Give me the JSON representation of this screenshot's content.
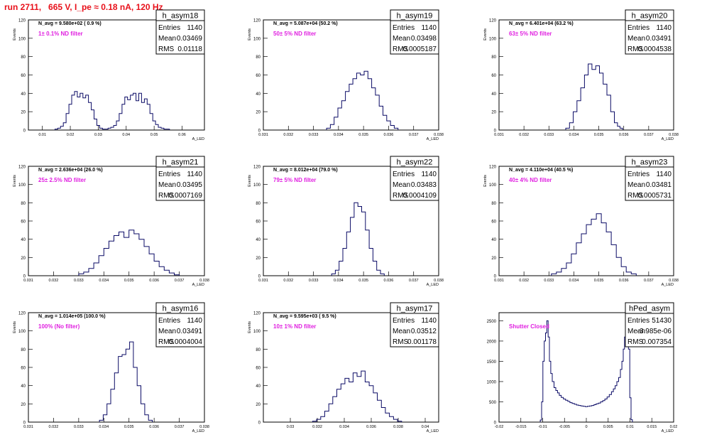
{
  "run_title": "run 2711,   665 V, I_pe ≈ 0.18 nA, 120 Hz",
  "chart_data": [
    {
      "type": "histogram",
      "name": "h_asym18",
      "stats": {
        "entries": "1140",
        "mean": "0.03469",
        "rms": "0.01118"
      },
      "n_avg": "N_avg = 9.580e+02 ( 0.9 %)",
      "filter": "1± 0.1% ND filter",
      "xlim": [
        0.005,
        0.068
      ],
      "ylim": [
        0,
        120
      ],
      "xticks": [
        0.01,
        0.02,
        0.03,
        0.04,
        0.05,
        0.06
      ],
      "xtick_labels": [
        "0.01",
        "0.02",
        "0.03",
        "0.04",
        "0.05",
        "0.06"
      ],
      "yticks": [
        0,
        20,
        40,
        60,
        80,
        100,
        120
      ],
      "xlabel": "A_LED",
      "ylabel": "Events",
      "bins": {
        "x": [
          0.015,
          0.016,
          0.017,
          0.018,
          0.019,
          0.02,
          0.021,
          0.022,
          0.023,
          0.024,
          0.025,
          0.026,
          0.027,
          0.028,
          0.029,
          0.03,
          0.031,
          0.032,
          0.033,
          0.034,
          0.035,
          0.036,
          0.037,
          0.038,
          0.039,
          0.04,
          0.041,
          0.042,
          0.043,
          0.044,
          0.045,
          0.046,
          0.047,
          0.048,
          0.049,
          0.05,
          0.051,
          0.052,
          0.053,
          0.054,
          0.055
        ],
        "y": [
          1,
          2,
          4,
          8,
          18,
          28,
          38,
          42,
          36,
          40,
          35,
          38,
          30,
          22,
          12,
          5,
          2,
          1,
          1,
          2,
          3,
          5,
          10,
          18,
          28,
          36,
          33,
          38,
          40,
          32,
          40,
          30,
          34,
          28,
          18,
          10,
          6,
          3,
          2,
          1,
          1
        ]
      }
    },
    {
      "type": "histogram",
      "name": "h_asym19",
      "stats": {
        "entries": "1140",
        "mean": "0.03498",
        "rms": "0.0005187"
      },
      "n_avg": "N_avg = 5.087e+04 (50.2 %)",
      "filter": "50± 5% ND filter",
      "xlim": [
        0.031,
        0.038
      ],
      "ylim": [
        0,
        120
      ],
      "xticks": [
        0.031,
        0.032,
        0.033,
        0.034,
        0.035,
        0.036,
        0.037,
        0.038
      ],
      "xtick_labels": [
        "0.031",
        "0.032",
        "0.033",
        "0.034",
        "0.035",
        "0.036",
        "0.037",
        "0.038"
      ],
      "yticks": [
        0,
        20,
        40,
        60,
        80,
        100,
        120
      ],
      "xlabel": "A_LED",
      "ylabel": "Events",
      "bins": {
        "x": [
          0.0336,
          0.03375,
          0.0339,
          0.03405,
          0.0342,
          0.03435,
          0.0345,
          0.03465,
          0.0348,
          0.03495,
          0.0351,
          0.03525,
          0.0354,
          0.03555,
          0.0357,
          0.03585,
          0.036,
          0.03615,
          0.0363
        ],
        "y": [
          2,
          6,
          14,
          24,
          32,
          42,
          50,
          56,
          62,
          60,
          64,
          56,
          46,
          38,
          26,
          16,
          10,
          5,
          2
        ]
      }
    },
    {
      "type": "histogram",
      "name": "h_asym20",
      "stats": {
        "entries": "1140",
        "mean": "0.03491",
        "rms": "0.0004538"
      },
      "n_avg": "N_avg = 6.401e+04 (63.2 %)",
      "filter": "63± 5% ND filter",
      "xlim": [
        0.031,
        0.038
      ],
      "ylim": [
        0,
        120
      ],
      "xticks": [
        0.031,
        0.032,
        0.033,
        0.034,
        0.035,
        0.036,
        0.037,
        0.038
      ],
      "xtick_labels": [
        "0.031",
        "0.032",
        "0.033",
        "0.034",
        "0.035",
        "0.036",
        "0.037",
        "0.038"
      ],
      "yticks": [
        0,
        20,
        40,
        60,
        80,
        100,
        120
      ],
      "xlabel": "A_LED",
      "ylabel": "Events",
      "bins": {
        "x": [
          0.03375,
          0.0339,
          0.03405,
          0.0342,
          0.03435,
          0.0345,
          0.03465,
          0.0348,
          0.03495,
          0.0351,
          0.03525,
          0.0354,
          0.03555,
          0.0357,
          0.0358,
          0.0359
        ],
        "y": [
          2,
          8,
          20,
          32,
          46,
          60,
          72,
          66,
          70,
          62,
          50,
          38,
          20,
          8,
          4,
          2
        ]
      }
    },
    {
      "type": "histogram",
      "name": "h_asym21",
      "stats": {
        "entries": "1140",
        "mean": "0.03495",
        "rms": "0.0007169"
      },
      "n_avg": "N_avg = 2.636e+04 (26.0 %)",
      "filter": "25± 2.5% ND filter",
      "xlim": [
        0.031,
        0.038
      ],
      "ylim": [
        0,
        120
      ],
      "xticks": [
        0.031,
        0.032,
        0.033,
        0.034,
        0.035,
        0.036,
        0.037,
        0.038
      ],
      "xtick_labels": [
        "0.031",
        "0.032",
        "0.033",
        "0.034",
        "0.035",
        "0.036",
        "0.037",
        "0.038"
      ],
      "yticks": [
        0,
        20,
        40,
        60,
        80,
        100,
        120
      ],
      "xlabel": "A_LED",
      "ylabel": "Events",
      "bins": {
        "x": [
          0.0331,
          0.0333,
          0.0335,
          0.0337,
          0.0339,
          0.0341,
          0.0343,
          0.0345,
          0.0347,
          0.0349,
          0.0351,
          0.0353,
          0.0355,
          0.0357,
          0.0359,
          0.0361,
          0.0363,
          0.0365,
          0.0367,
          0.0369
        ],
        "y": [
          2,
          4,
          8,
          14,
          22,
          30,
          38,
          44,
          48,
          42,
          50,
          46,
          40,
          32,
          24,
          16,
          10,
          6,
          3,
          1
        ]
      }
    },
    {
      "type": "histogram",
      "name": "h_asym22",
      "stats": {
        "entries": "1140",
        "mean": "0.03483",
        "rms": "0.0004109"
      },
      "n_avg": "N_avg = 8.012e+04 (79.0 %)",
      "filter": "79± 5% ND filter",
      "xlim": [
        0.031,
        0.038
      ],
      "ylim": [
        0,
        120
      ],
      "xticks": [
        0.031,
        0.032,
        0.033,
        0.034,
        0.035,
        0.036,
        0.037,
        0.038
      ],
      "xtick_labels": [
        "0.031",
        "0.032",
        "0.033",
        "0.034",
        "0.035",
        "0.036",
        "0.037",
        "0.038"
      ],
      "yticks": [
        0,
        20,
        40,
        60,
        80,
        100,
        120
      ],
      "xlabel": "A_LED",
      "ylabel": "Events",
      "bins": {
        "x": [
          0.0338,
          0.03395,
          0.0341,
          0.03425,
          0.0344,
          0.03455,
          0.0347,
          0.03485,
          0.035,
          0.03515,
          0.0353,
          0.03545,
          0.0356,
          0.03575
        ],
        "y": [
          2,
          6,
          16,
          30,
          48,
          64,
          80,
          76,
          70,
          50,
          30,
          16,
          6,
          2
        ]
      }
    },
    {
      "type": "histogram",
      "name": "h_asym23",
      "stats": {
        "entries": "1140",
        "mean": "0.03481",
        "rms": "0.0005731"
      },
      "n_avg": "N_avg = 4.110e+04 (40.5 %)",
      "filter": "40± 4% ND filter",
      "xlim": [
        0.031,
        0.038
      ],
      "ylim": [
        0,
        120
      ],
      "xticks": [
        0.031,
        0.032,
        0.033,
        0.034,
        0.035,
        0.036,
        0.037,
        0.038
      ],
      "xtick_labels": [
        "0.031",
        "0.032",
        "0.033",
        "0.034",
        "0.035",
        "0.036",
        "0.037",
        "0.038"
      ],
      "yticks": [
        0,
        20,
        40,
        60,
        80,
        100,
        120
      ],
      "xlabel": "A_LED",
      "ylabel": "Events",
      "bins": {
        "x": [
          0.0332,
          0.0334,
          0.0336,
          0.0338,
          0.034,
          0.0342,
          0.0344,
          0.0346,
          0.0348,
          0.035,
          0.0352,
          0.0354,
          0.0356,
          0.0358,
          0.036,
          0.0362,
          0.0364
        ],
        "y": [
          2,
          4,
          8,
          14,
          24,
          36,
          46,
          56,
          62,
          68,
          58,
          48,
          34,
          20,
          10,
          4,
          2
        ]
      }
    },
    {
      "type": "histogram",
      "name": "h_asym16",
      "stats": {
        "entries": "1140",
        "mean": "0.03491",
        "rms": "0.0004004"
      },
      "n_avg": "N_avg = 1.014e+05 (100.0 %)",
      "filter": "100% (No filter)",
      "xlim": [
        0.031,
        0.038
      ],
      "ylim": [
        0,
        120
      ],
      "xticks": [
        0.031,
        0.032,
        0.033,
        0.034,
        0.035,
        0.036,
        0.037,
        0.038
      ],
      "xtick_labels": [
        "0.031",
        "0.032",
        "0.033",
        "0.034",
        "0.035",
        "0.036",
        "0.037",
        "0.038"
      ],
      "yticks": [
        0,
        20,
        40,
        60,
        80,
        100,
        120
      ],
      "xlabel": "A_LED",
      "ylabel": "Events",
      "bins": {
        "x": [
          0.0339,
          0.03405,
          0.0342,
          0.03435,
          0.0345,
          0.03465,
          0.0348,
          0.03495,
          0.0351,
          0.03525,
          0.0354,
          0.03555,
          0.0357,
          0.03585
        ],
        "y": [
          2,
          8,
          20,
          36,
          54,
          72,
          74,
          80,
          88,
          60,
          40,
          20,
          8,
          2
        ]
      }
    },
    {
      "type": "histogram",
      "name": "h_asym17",
      "stats": {
        "entries": "1140",
        "mean": "0.03512",
        "rms": "0.001178"
      },
      "n_avg": "N_avg = 9.595e+03 ( 9.5 %)",
      "filter": "10± 1% ND filter",
      "xlim": [
        0.028,
        0.041
      ],
      "ylim": [
        0,
        120
      ],
      "xticks": [
        0.03,
        0.032,
        0.034,
        0.036,
        0.038,
        0.04
      ],
      "xtick_labels": [
        "0.03",
        "0.032",
        "0.034",
        "0.036",
        "0.038",
        "0.04"
      ],
      "yticks": [
        0,
        20,
        40,
        60,
        80,
        100,
        120
      ],
      "xlabel": "A_LED",
      "ylabel": "Events",
      "bins": {
        "x": [
          0.0318,
          0.0321,
          0.0324,
          0.0327,
          0.033,
          0.0333,
          0.0336,
          0.0339,
          0.0342,
          0.0345,
          0.0348,
          0.0351,
          0.0354,
          0.0357,
          0.036,
          0.0363,
          0.0366,
          0.0369,
          0.0372,
          0.0375,
          0.0378,
          0.0381
        ],
        "y": [
          1,
          3,
          6,
          12,
          20,
          28,
          36,
          42,
          48,
          44,
          54,
          50,
          56,
          44,
          40,
          32,
          24,
          16,
          10,
          6,
          3,
          1
        ]
      }
    },
    {
      "type": "histogram",
      "name": "hPed_asym",
      "stats": {
        "entries": "51430",
        "mean": "-3.985e-06",
        "rms": "0.007354"
      },
      "n_avg": "",
      "filter": "Shutter Closed",
      "xlim": [
        -0.02,
        0.02
      ],
      "ylim": [
        0,
        2700
      ],
      "xticks": [
        -0.02,
        -0.015,
        -0.01,
        -0.005,
        0,
        0.005,
        0.01,
        0.015,
        0.02
      ],
      "xtick_labels": [
        "-0.02",
        "-0.015",
        "-0.01",
        "-0.005",
        "0",
        "0.005",
        "0.01",
        "0.015",
        "0.02"
      ],
      "yticks": [
        0,
        500,
        1000,
        1500,
        2000,
        2500
      ],
      "xlabel": "A_LED",
      "ylabel": "",
      "bins": {
        "x": [
          -0.0104,
          -0.0101,
          -0.0098,
          -0.0095,
          -0.0092,
          -0.0089,
          -0.0086,
          -0.0083,
          -0.008,
          -0.0076,
          -0.0072,
          -0.0068,
          -0.0064,
          -0.006,
          -0.0055,
          -0.005,
          -0.0045,
          -0.004,
          -0.0035,
          -0.003,
          -0.0025,
          -0.002,
          -0.0015,
          -0.001,
          -0.0005,
          0,
          0.0005,
          0.001,
          0.0015,
          0.002,
          0.0025,
          0.003,
          0.0035,
          0.004,
          0.0045,
          0.005,
          0.0055,
          0.006,
          0.0064,
          0.0068,
          0.0072,
          0.0076,
          0.008,
          0.0083,
          0.0086,
          0.0089,
          0.0092,
          0.0095,
          0.0098,
          0.0101,
          0.0104
        ],
        "y": [
          50,
          500,
          1500,
          2000,
          2200,
          2500,
          2100,
          1500,
          1200,
          1000,
          850,
          780,
          720,
          660,
          610,
          570,
          540,
          510,
          480,
          460,
          440,
          420,
          410,
          400,
          390,
          380,
          390,
          400,
          410,
          430,
          450,
          470,
          500,
          530,
          570,
          620,
          680,
          750,
          820,
          900,
          1000,
          1100,
          1300,
          1500,
          1800,
          2100,
          2300,
          2400,
          1800,
          600,
          60
        ]
      }
    }
  ]
}
